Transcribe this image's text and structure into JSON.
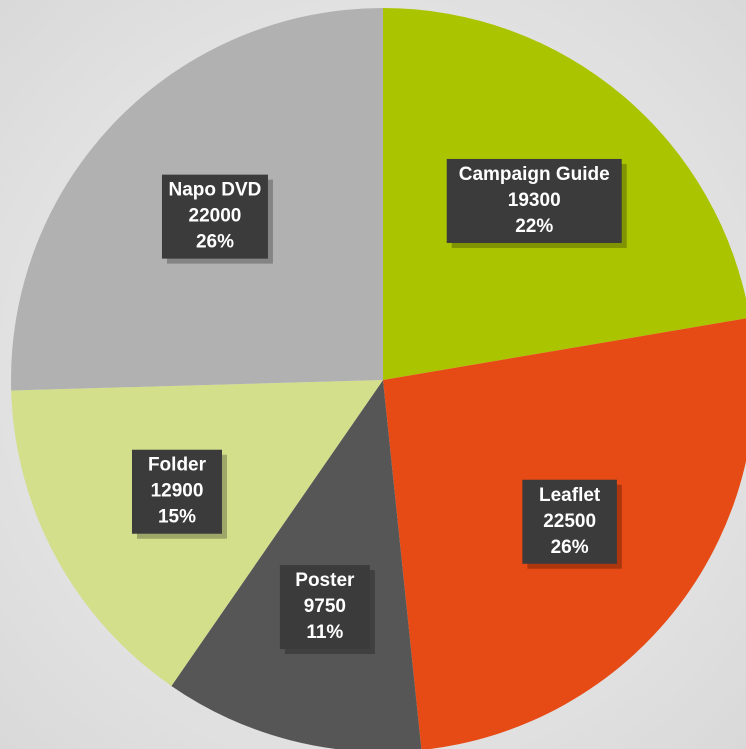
{
  "chart_data": {
    "type": "pie",
    "categories": [
      "Campaign Guide",
      "Leaflet",
      "Poster",
      "Folder",
      "Napo DVD"
    ],
    "values": [
      19300,
      22500,
      9750,
      12900,
      22000
    ],
    "percent_labels": [
      "22%",
      "26%",
      "11%",
      "15%",
      "26%"
    ],
    "colors": [
      "#abc400",
      "#e64a15",
      "#565656",
      "#d3df8b",
      "#b1b1b1"
    ],
    "start_angle": 0,
    "direction": "clockwise"
  }
}
